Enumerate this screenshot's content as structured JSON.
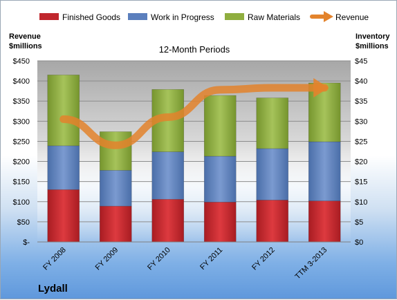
{
  "chart_data": {
    "type": "bar",
    "stacked": true,
    "title": "12-Month Periods",
    "brand": "Lydall",
    "left_axis_label": [
      "Revenue",
      "$millions"
    ],
    "right_axis_label": [
      "Inventory",
      "$millions"
    ],
    "categories": [
      "FY 2008",
      "FY 2009",
      "FY 2010",
      "FY 2011",
      "FY 2012",
      "TTM 3-2013"
    ],
    "left_ylim": [
      0,
      450
    ],
    "right_ylim": [
      0,
      45
    ],
    "left_ticks": [
      "$-",
      "$50",
      "$100",
      "$150",
      "$200",
      "$250",
      "$300",
      "$350",
      "$400",
      "$450"
    ],
    "right_ticks": [
      "$0",
      "$5",
      "$10",
      "$15",
      "$20",
      "$25",
      "$30",
      "$35",
      "$40",
      "$45"
    ],
    "grid": true,
    "legend_position": "top",
    "series": [
      {
        "name": "Finished Goods",
        "kind": "bar",
        "axis": "right",
        "color": "#c0272d",
        "values": [
          13.0,
          8.9,
          10.6,
          9.9,
          10.4,
          10.2
        ]
      },
      {
        "name": "Work in Progress",
        "kind": "bar",
        "axis": "right",
        "color": "#5b7fbd",
        "values": [
          10.9,
          8.9,
          11.8,
          11.4,
          12.8,
          14.7
        ]
      },
      {
        "name": "Raw Materials",
        "kind": "bar",
        "axis": "right",
        "color": "#8fae3f",
        "values": [
          17.6,
          9.6,
          15.5,
          15.1,
          12.6,
          14.6
        ]
      },
      {
        "name": "Revenue",
        "kind": "line",
        "axis": "left",
        "color": "#e3832c",
        "values": [
          305,
          240,
          310,
          378,
          383,
          383
        ]
      }
    ]
  }
}
